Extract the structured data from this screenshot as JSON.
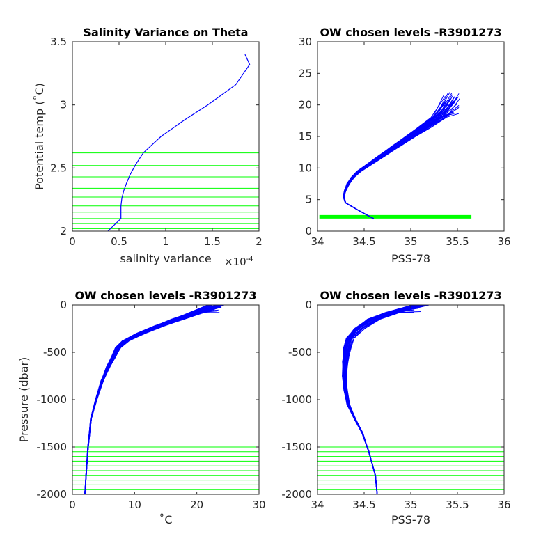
{
  "chart_data": [
    {
      "id": "salvar",
      "type": "line",
      "title": "Salinity Variance on Theta",
      "xlabel": "salinity variance",
      "x_exponent_label": "×10",
      "x_exponent_power": "-4",
      "ylabel": "Potential temp (˚C)",
      "xlim": [
        0,
        2
      ],
      "ylim": [
        2,
        3.5
      ],
      "xticks": [
        0,
        0.5,
        1,
        1.5,
        2
      ],
      "yticks": [
        2,
        2.5,
        3,
        3.5
      ],
      "xtick_labels": [
        "0",
        "0.5",
        "1",
        "1.5",
        "2"
      ],
      "ytick_labels": [
        "2",
        "2.5",
        "3",
        "3.5"
      ],
      "series": [
        {
          "color": "#0000ff",
          "x": [
            0.38,
            0.45,
            0.52,
            0.52,
            0.52,
            0.53,
            0.55,
            0.58,
            0.62,
            0.68,
            0.76,
            0.95,
            1.2,
            1.45,
            1.75,
            1.9,
            1.85
          ],
          "y": [
            2.0,
            2.05,
            2.1,
            2.15,
            2.2,
            2.26,
            2.32,
            2.38,
            2.45,
            2.53,
            2.62,
            2.75,
            2.88,
            3.0,
            3.16,
            3.32,
            3.4
          ]
        }
      ],
      "hlines": {
        "color": "#00ff00",
        "values": [
          2.02,
          2.06,
          2.1,
          2.15,
          2.2,
          2.27,
          2.34,
          2.43,
          2.52,
          2.62
        ]
      },
      "grid": false
    },
    {
      "id": "thetasal",
      "type": "line",
      "title": "OW chosen levels -R3901273",
      "xlabel": "PSS-78",
      "ylabel": "",
      "xlim": [
        34,
        36
      ],
      "ylim": [
        0,
        30
      ],
      "xticks": [
        34,
        34.5,
        35,
        35.5,
        36
      ],
      "yticks": [
        0,
        5,
        10,
        15,
        20,
        25,
        30
      ],
      "xtick_labels": [
        "34",
        "34.5",
        "35",
        "35.5",
        "36"
      ],
      "ytick_labels": [
        "0",
        "5",
        "10",
        "15",
        "20",
        "25",
        "30"
      ],
      "profile_count": 40,
      "profile_color": "#0000ff",
      "base_profile": {
        "x": [
          34.6,
          34.45,
          34.3,
          34.28,
          34.3,
          34.33,
          34.38,
          34.45,
          34.55,
          34.7,
          34.85,
          35.0,
          35.15,
          35.3,
          35.45
        ],
        "y": [
          2.0,
          3.2,
          4.5,
          5.5,
          6.5,
          7.5,
          8.5,
          9.5,
          10.5,
          12.0,
          13.5,
          15.0,
          16.5,
          18.0,
          19.5
        ]
      },
      "hbands": {
        "color": "#00ff00",
        "x_range": [
          34.02,
          35.65
        ],
        "y_range": [
          2.0,
          2.55
        ]
      },
      "grid": false
    },
    {
      "id": "temppres",
      "type": "line",
      "title": "OW chosen levels -R3901273",
      "xlabel": "˚C",
      "ylabel": "Pressure (dbar)",
      "xlim": [
        0,
        30
      ],
      "ylim": [
        -2000,
        0
      ],
      "xticks": [
        0,
        10,
        20,
        30
      ],
      "yticks": [
        -2000,
        -1500,
        -1000,
        -500,
        0
      ],
      "xtick_labels": [
        "0",
        "10",
        "20",
        "30"
      ],
      "ytick_labels": [
        "-2000",
        "-1500",
        "-1000",
        "-500",
        "0"
      ],
      "profile_count": 40,
      "profile_color": "#0000ff",
      "base_profile": {
        "x": [
          2.0,
          2.2,
          2.5,
          3.0,
          3.8,
          4.8,
          5.8,
          6.6,
          7.3,
          8.5,
          11.0,
          14.0,
          17.0,
          20.0,
          23.0
        ],
        "y": [
          -2000,
          -1800,
          -1500,
          -1200,
          -1000,
          -800,
          -650,
          -550,
          -450,
          -380,
          -300,
          -220,
          -150,
          -80,
          -10
        ]
      },
      "hlines": {
        "color": "#00ff00",
        "values": [
          -1500,
          -1550,
          -1600,
          -1650,
          -1700,
          -1750,
          -1800,
          -1850,
          -1900,
          -1950
        ]
      },
      "grid": false
    },
    {
      "id": "salpres",
      "type": "line",
      "title": "OW chosen levels -R3901273",
      "xlabel": "PSS-78",
      "ylabel": "",
      "xlim": [
        34,
        36
      ],
      "ylim": [
        -2000,
        0
      ],
      "xticks": [
        34,
        34.5,
        35,
        35.5,
        36
      ],
      "yticks": [
        -2000,
        -1500,
        -1000,
        -500,
        0
      ],
      "xtick_labels": [
        "34",
        "34.5",
        "35",
        "35.5",
        "36"
      ],
      "ytick_labels": [
        "-2000",
        "-1500",
        "-1000",
        "-500",
        "0"
      ],
      "profile_count": 40,
      "profile_color": "#0000ff",
      "base_profile": {
        "x": [
          34.64,
          34.62,
          34.55,
          34.48,
          34.4,
          34.33,
          34.3,
          34.29,
          34.3,
          34.32,
          34.35,
          34.45,
          34.6,
          34.8,
          35.1
        ],
        "y": [
          -2000,
          -1800,
          -1550,
          -1350,
          -1200,
          -1050,
          -900,
          -750,
          -600,
          -450,
          -350,
          -250,
          -150,
          -80,
          -10
        ]
      },
      "hlines": {
        "color": "#00ff00",
        "values": [
          -1500,
          -1550,
          -1600,
          -1650,
          -1700,
          -1750,
          -1800,
          -1850,
          -1900,
          -1950
        ]
      },
      "grid": false
    }
  ]
}
